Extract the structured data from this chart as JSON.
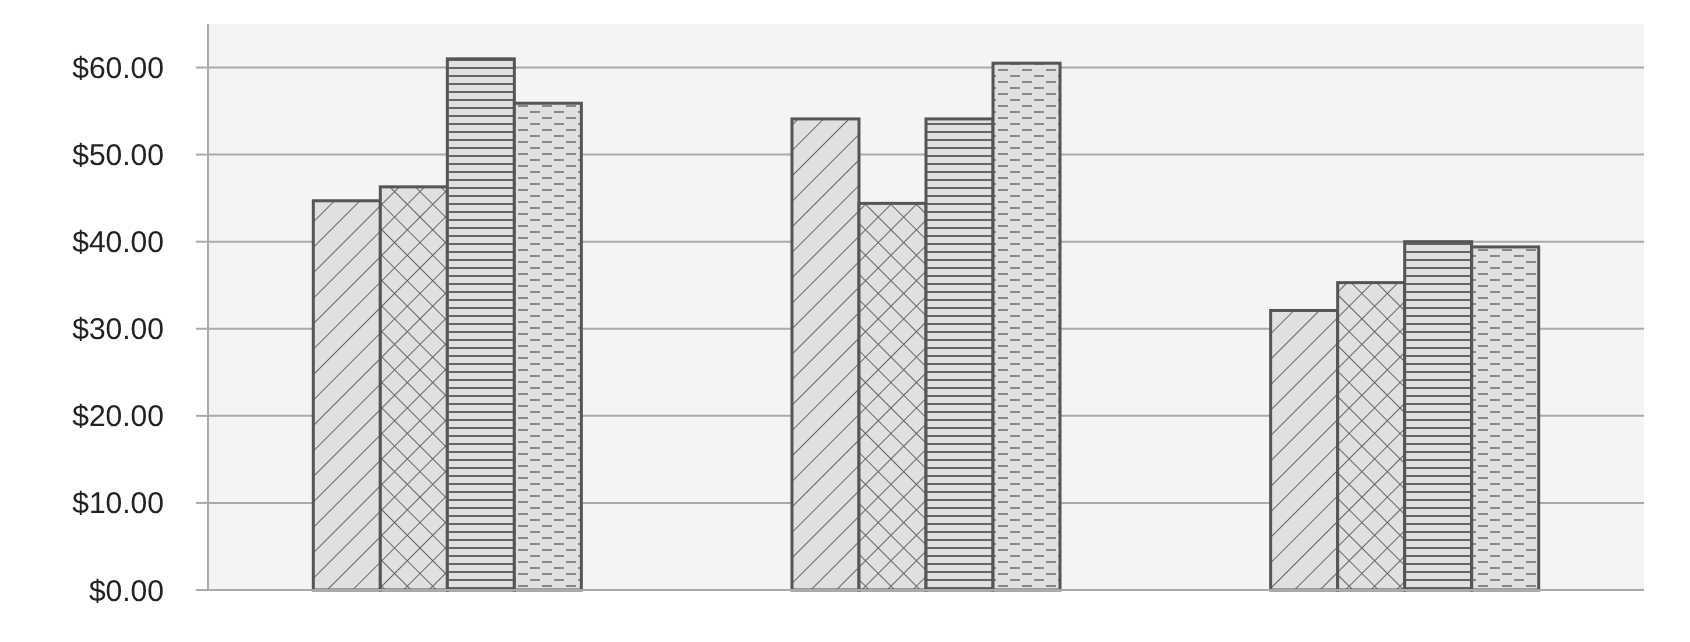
{
  "chart_data": {
    "type": "bar",
    "categories": [
      null,
      null,
      null
    ],
    "series": [
      {
        "color": "#e0e0e0",
        "values": [
          44.7,
          54.1,
          32.1
        ]
      },
      {
        "color": "#e0e0e0",
        "values": [
          46.3,
          44.4,
          35.3
        ]
      },
      {
        "color": "#e0e0e0",
        "values": [
          61,
          54.1,
          40
        ]
      },
      {
        "color": "#e0e0e0",
        "values": [
          55.9,
          60.5,
          39.4
        ]
      }
    ],
    "ylim": [
      0,
      65
    ],
    "yticks": [
      {
        "value": 0,
        "label": "$0.00"
      },
      {
        "value": 10,
        "label": "$10.00"
      },
      {
        "value": 20,
        "label": "$20.00"
      },
      {
        "value": 30,
        "label": "$30.00"
      },
      {
        "value": 40,
        "label": "$40.00"
      },
      {
        "value": 50,
        "label": "$50.00"
      },
      {
        "value": 60,
        "label": "$60.00"
      }
    ],
    "grid": "y"
  }
}
